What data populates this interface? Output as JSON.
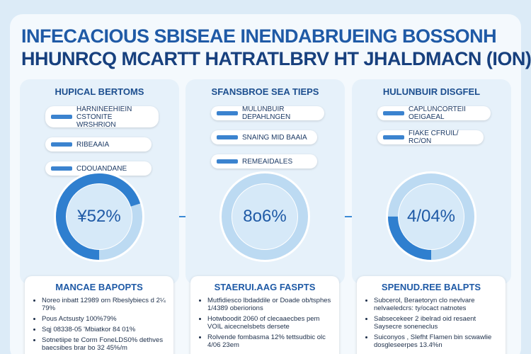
{
  "header": {
    "title_line1": "INFECACIOUS SBISEAE INENDABRUEING BOSSONH",
    "title_line2": "HHUNRCQ MCARTT HATRATLBRV HT JHALDMACN (ION)"
  },
  "columns": [
    {
      "heading": "HUPICAL BERTOMS",
      "rows": [
        "HARNINEEHIEIN CSTONITE WRSHRION",
        "RIBEAAIA",
        "CDOUANDANE"
      ],
      "center": "¥52%",
      "card_title": "MANCAE BAPOPTS",
      "bullets": [
        "Noreo inbatt 12989 orn Rbeslybiecs d 2¼ 79%",
        "Pous Actsusty 100%79%",
        "Sqj 08338-05 'Mbiatkor 84 01%",
        "Sotnetiipe te Corm FoneLDS0% dethves baecsibes brar bo 32 45%/m"
      ]
    },
    {
      "heading": "SFANSBROE SEA TIEPS",
      "rows": [
        "MULUNBUIR DEPAHLNGEN",
        "SNAING MID BAAIA",
        "REMEAIDALES"
      ],
      "center": "8o6%",
      "card_title": "STAERUI.AAG FASPTS",
      "bullets": [
        "Mutfidiesco lbdaddile or Doade ob/tsphes 1/4389 oberiorions",
        "Hotwboodit 2060 of clecaaecbes pem VOIL aicecnelsbets dersete",
        "Rolvende fombasma 12% tettsudbic olc 4/06 23em"
      ]
    },
    {
      "heading": "HULUNBUIR DISGFEL",
      "rows": [
        "CAPLUNCORTEII OEIGAEAL",
        "FIAKE CFRUIL/ RC/ON"
      ],
      "center": "4/04%",
      "card_title": "SPENUD.REE BALPTS",
      "bullets": [
        "Subcerol, Beraetoryn clo nevlvare nelvaeledcrs: ty/ocact natnotes",
        "Sabsecekeer 2 ibelrad oid resaent Saysecre soneneclus",
        "Suiconyos , Slefht Flamen bin scwawlie dosgleseerpes 13.4%n"
      ]
    }
  ]
}
